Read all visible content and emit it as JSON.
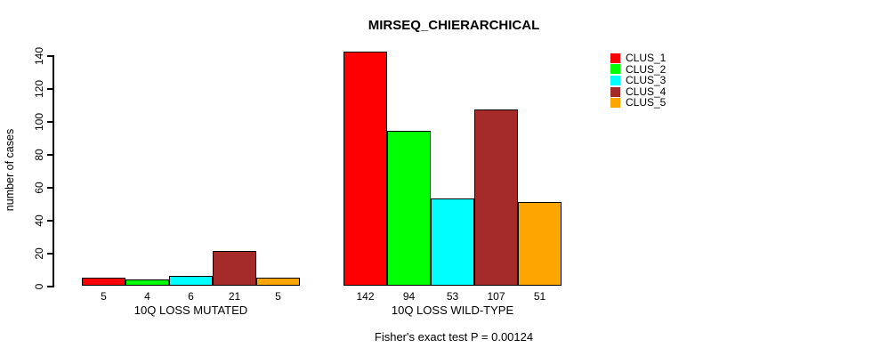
{
  "chart_data": {
    "type": "bar",
    "title": "MIRSEQ_CHIERARCHICAL",
    "ylabel": "number of cases",
    "xlabel": "",
    "subtitle": "Fisher's exact test P = 0.00124",
    "ylim": [
      0,
      140
    ],
    "yticks": [
      0,
      20,
      40,
      60,
      80,
      100,
      120,
      140
    ],
    "grid": false,
    "legend_position": "right",
    "bar_border_color": "#000000",
    "categories": [
      "10Q LOSS MUTATED",
      "10Q LOSS WILD-TYPE"
    ],
    "series": [
      {
        "name": "CLUS_1",
        "color": "#FF0000",
        "values": [
          5,
          142
        ]
      },
      {
        "name": "CLUS_2",
        "color": "#00FF00",
        "values": [
          4,
          94
        ]
      },
      {
        "name": "CLUS_3",
        "color": "#00FFFF",
        "values": [
          6,
          53
        ]
      },
      {
        "name": "CLUS_4",
        "color": "#A52A2A",
        "values": [
          21,
          107
        ]
      },
      {
        "name": "CLUS_5",
        "color": "#FFA500",
        "values": [
          5,
          51
        ]
      }
    ],
    "bar_value_labels": [
      [
        "5",
        "4",
        "6",
        "21",
        "5"
      ],
      [
        "142",
        "94",
        "53",
        "107",
        "51"
      ]
    ]
  }
}
